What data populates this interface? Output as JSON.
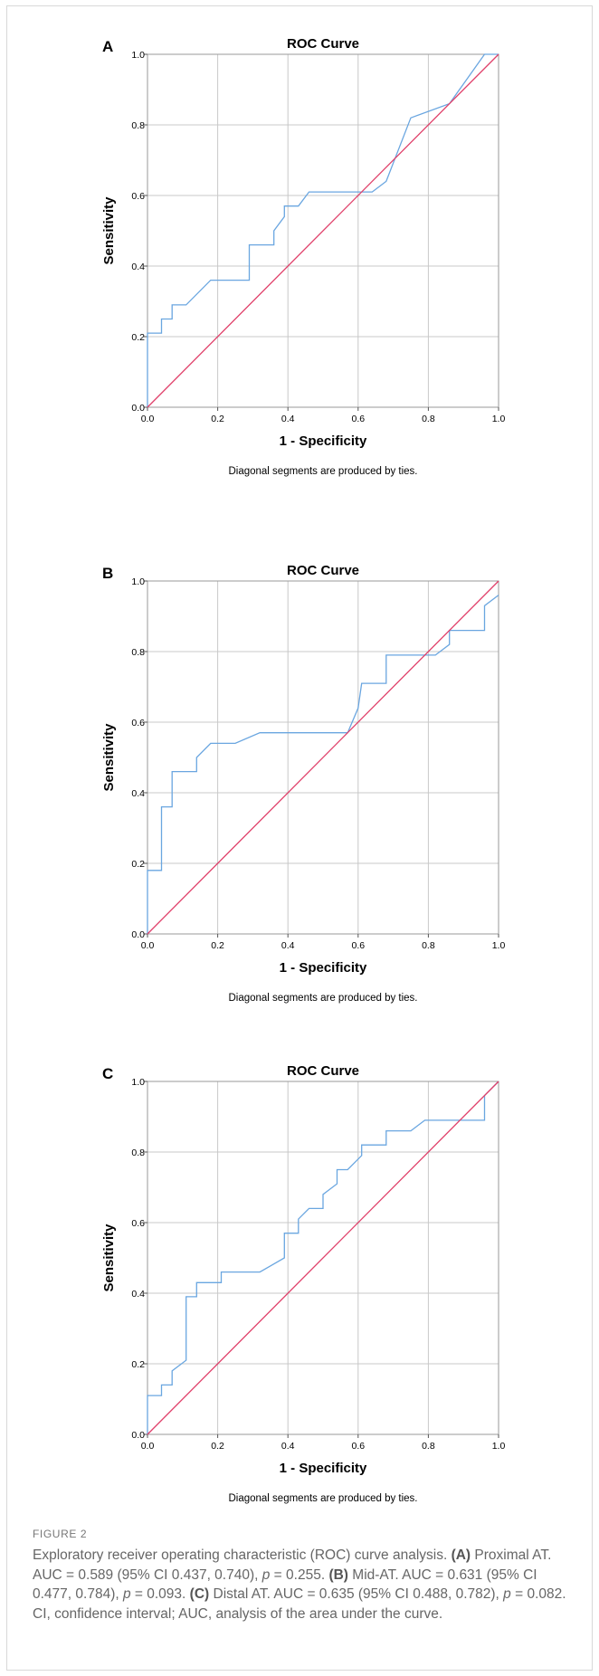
{
  "figure": {
    "label": "FIGURE 2",
    "caption_runs": [
      {
        "text": "Exploratory receiver operating characteristic (ROC) curve analysis. ",
        "style": "normal"
      },
      {
        "text": "(A)",
        "style": "bold"
      },
      {
        "text": " Proximal AT. AUC = 0.589 (95% CI 0.437, 0.740), ",
        "style": "normal"
      },
      {
        "text": "p",
        "style": "italic"
      },
      {
        "text": " = 0.255. ",
        "style": "normal"
      },
      {
        "text": "(B)",
        "style": "bold"
      },
      {
        "text": " Mid-AT. AUC = 0.631 (95% CI 0.477, 0.784), ",
        "style": "normal"
      },
      {
        "text": "p",
        "style": "italic"
      },
      {
        "text": " = 0.093. ",
        "style": "normal"
      },
      {
        "text": "(C)",
        "style": "bold"
      },
      {
        "text": " Distal AT. AUC = 0.635 (95% CI 0.488, 0.782), ",
        "style": "normal"
      },
      {
        "text": "p",
        "style": "italic"
      },
      {
        "text": " = 0.082. CI, confidence interval; AUC, analysis of the area under the curve.",
        "style": "normal"
      }
    ]
  },
  "chart_data": [
    {
      "panel_label": "A",
      "type": "line",
      "title": "ROC Curve",
      "xlabel": "1 - Specificity",
      "ylabel": "Sensitivity",
      "xlim": [
        0,
        1
      ],
      "ylim": [
        0,
        1
      ],
      "ticks": [
        "0.0",
        "0.2",
        "0.4",
        "0.6",
        "0.8",
        "1.0"
      ],
      "grid": true,
      "footnote": "Diagonal segments are produced by ties.",
      "series": [
        {
          "role": "roc",
          "color": "#6aa6e0",
          "x": [
            0,
            0,
            0.04,
            0.04,
            0.07,
            0.07,
            0.11,
            0.18,
            0.29,
            0.29,
            0.36,
            0.36,
            0.39,
            0.39,
            0.43,
            0.46,
            0.64,
            0.68,
            0.75,
            0.86,
            0.96,
            1.0
          ],
          "y": [
            0,
            0.21,
            0.21,
            0.25,
            0.25,
            0.29,
            0.29,
            0.36,
            0.36,
            0.46,
            0.46,
            0.5,
            0.54,
            0.57,
            0.57,
            0.61,
            0.61,
            0.64,
            0.82,
            0.86,
            1.0,
            1.0
          ]
        },
        {
          "role": "reference",
          "color": "#e0406a",
          "x": [
            0,
            1
          ],
          "y": [
            0,
            1
          ]
        }
      ]
    },
    {
      "panel_label": "B",
      "type": "line",
      "title": "ROC Curve",
      "xlabel": "1 - Specificity",
      "ylabel": "Sensitivity",
      "xlim": [
        0,
        1
      ],
      "ylim": [
        0,
        1
      ],
      "ticks": [
        "0.0",
        "0.2",
        "0.4",
        "0.6",
        "0.8",
        "1.0"
      ],
      "grid": true,
      "footnote": "Diagonal segments are produced by ties.",
      "series": [
        {
          "role": "roc",
          "color": "#6aa6e0",
          "x": [
            0,
            0,
            0.04,
            0.04,
            0.07,
            0.07,
            0.14,
            0.14,
            0.18,
            0.25,
            0.32,
            0.57,
            0.6,
            0.61,
            0.68,
            0.68,
            0.82,
            0.86,
            0.86,
            0.96,
            0.96,
            1.0
          ],
          "y": [
            0,
            0.18,
            0.18,
            0.36,
            0.36,
            0.46,
            0.46,
            0.5,
            0.54,
            0.54,
            0.57,
            0.57,
            0.64,
            0.71,
            0.71,
            0.79,
            0.79,
            0.82,
            0.86,
            0.86,
            0.93,
            0.96
          ]
        },
        {
          "role": "reference",
          "color": "#e0406a",
          "x": [
            0,
            1
          ],
          "y": [
            0,
            1
          ]
        }
      ]
    },
    {
      "panel_label": "C",
      "type": "line",
      "title": "ROC Curve",
      "xlabel": "1 - Specificity",
      "ylabel": "Sensitivity",
      "xlim": [
        0,
        1
      ],
      "ylim": [
        0,
        1
      ],
      "ticks": [
        "0.0",
        "0.2",
        "0.4",
        "0.6",
        "0.8",
        "1.0"
      ],
      "grid": true,
      "footnote": "Diagonal segments are produced by ties.",
      "series": [
        {
          "role": "roc",
          "color": "#6aa6e0",
          "x": [
            0,
            0,
            0.04,
            0.04,
            0.07,
            0.07,
            0.11,
            0.11,
            0.14,
            0.14,
            0.21,
            0.21,
            0.32,
            0.39,
            0.39,
            0.43,
            0.43,
            0.46,
            0.5,
            0.5,
            0.54,
            0.54,
            0.57,
            0.61,
            0.61,
            0.68,
            0.68,
            0.75,
            0.79,
            0.79,
            0.96,
            0.96,
            1.0
          ],
          "y": [
            0,
            0.11,
            0.11,
            0.14,
            0.14,
            0.18,
            0.21,
            0.39,
            0.39,
            0.43,
            0.43,
            0.46,
            0.46,
            0.5,
            0.57,
            0.57,
            0.61,
            0.64,
            0.64,
            0.68,
            0.71,
            0.75,
            0.75,
            0.79,
            0.82,
            0.82,
            0.86,
            0.86,
            0.89,
            0.89,
            0.89,
            0.96,
            1.0
          ]
        },
        {
          "role": "reference",
          "color": "#e0406a",
          "x": [
            0,
            1
          ],
          "y": [
            0,
            1
          ]
        }
      ]
    }
  ]
}
